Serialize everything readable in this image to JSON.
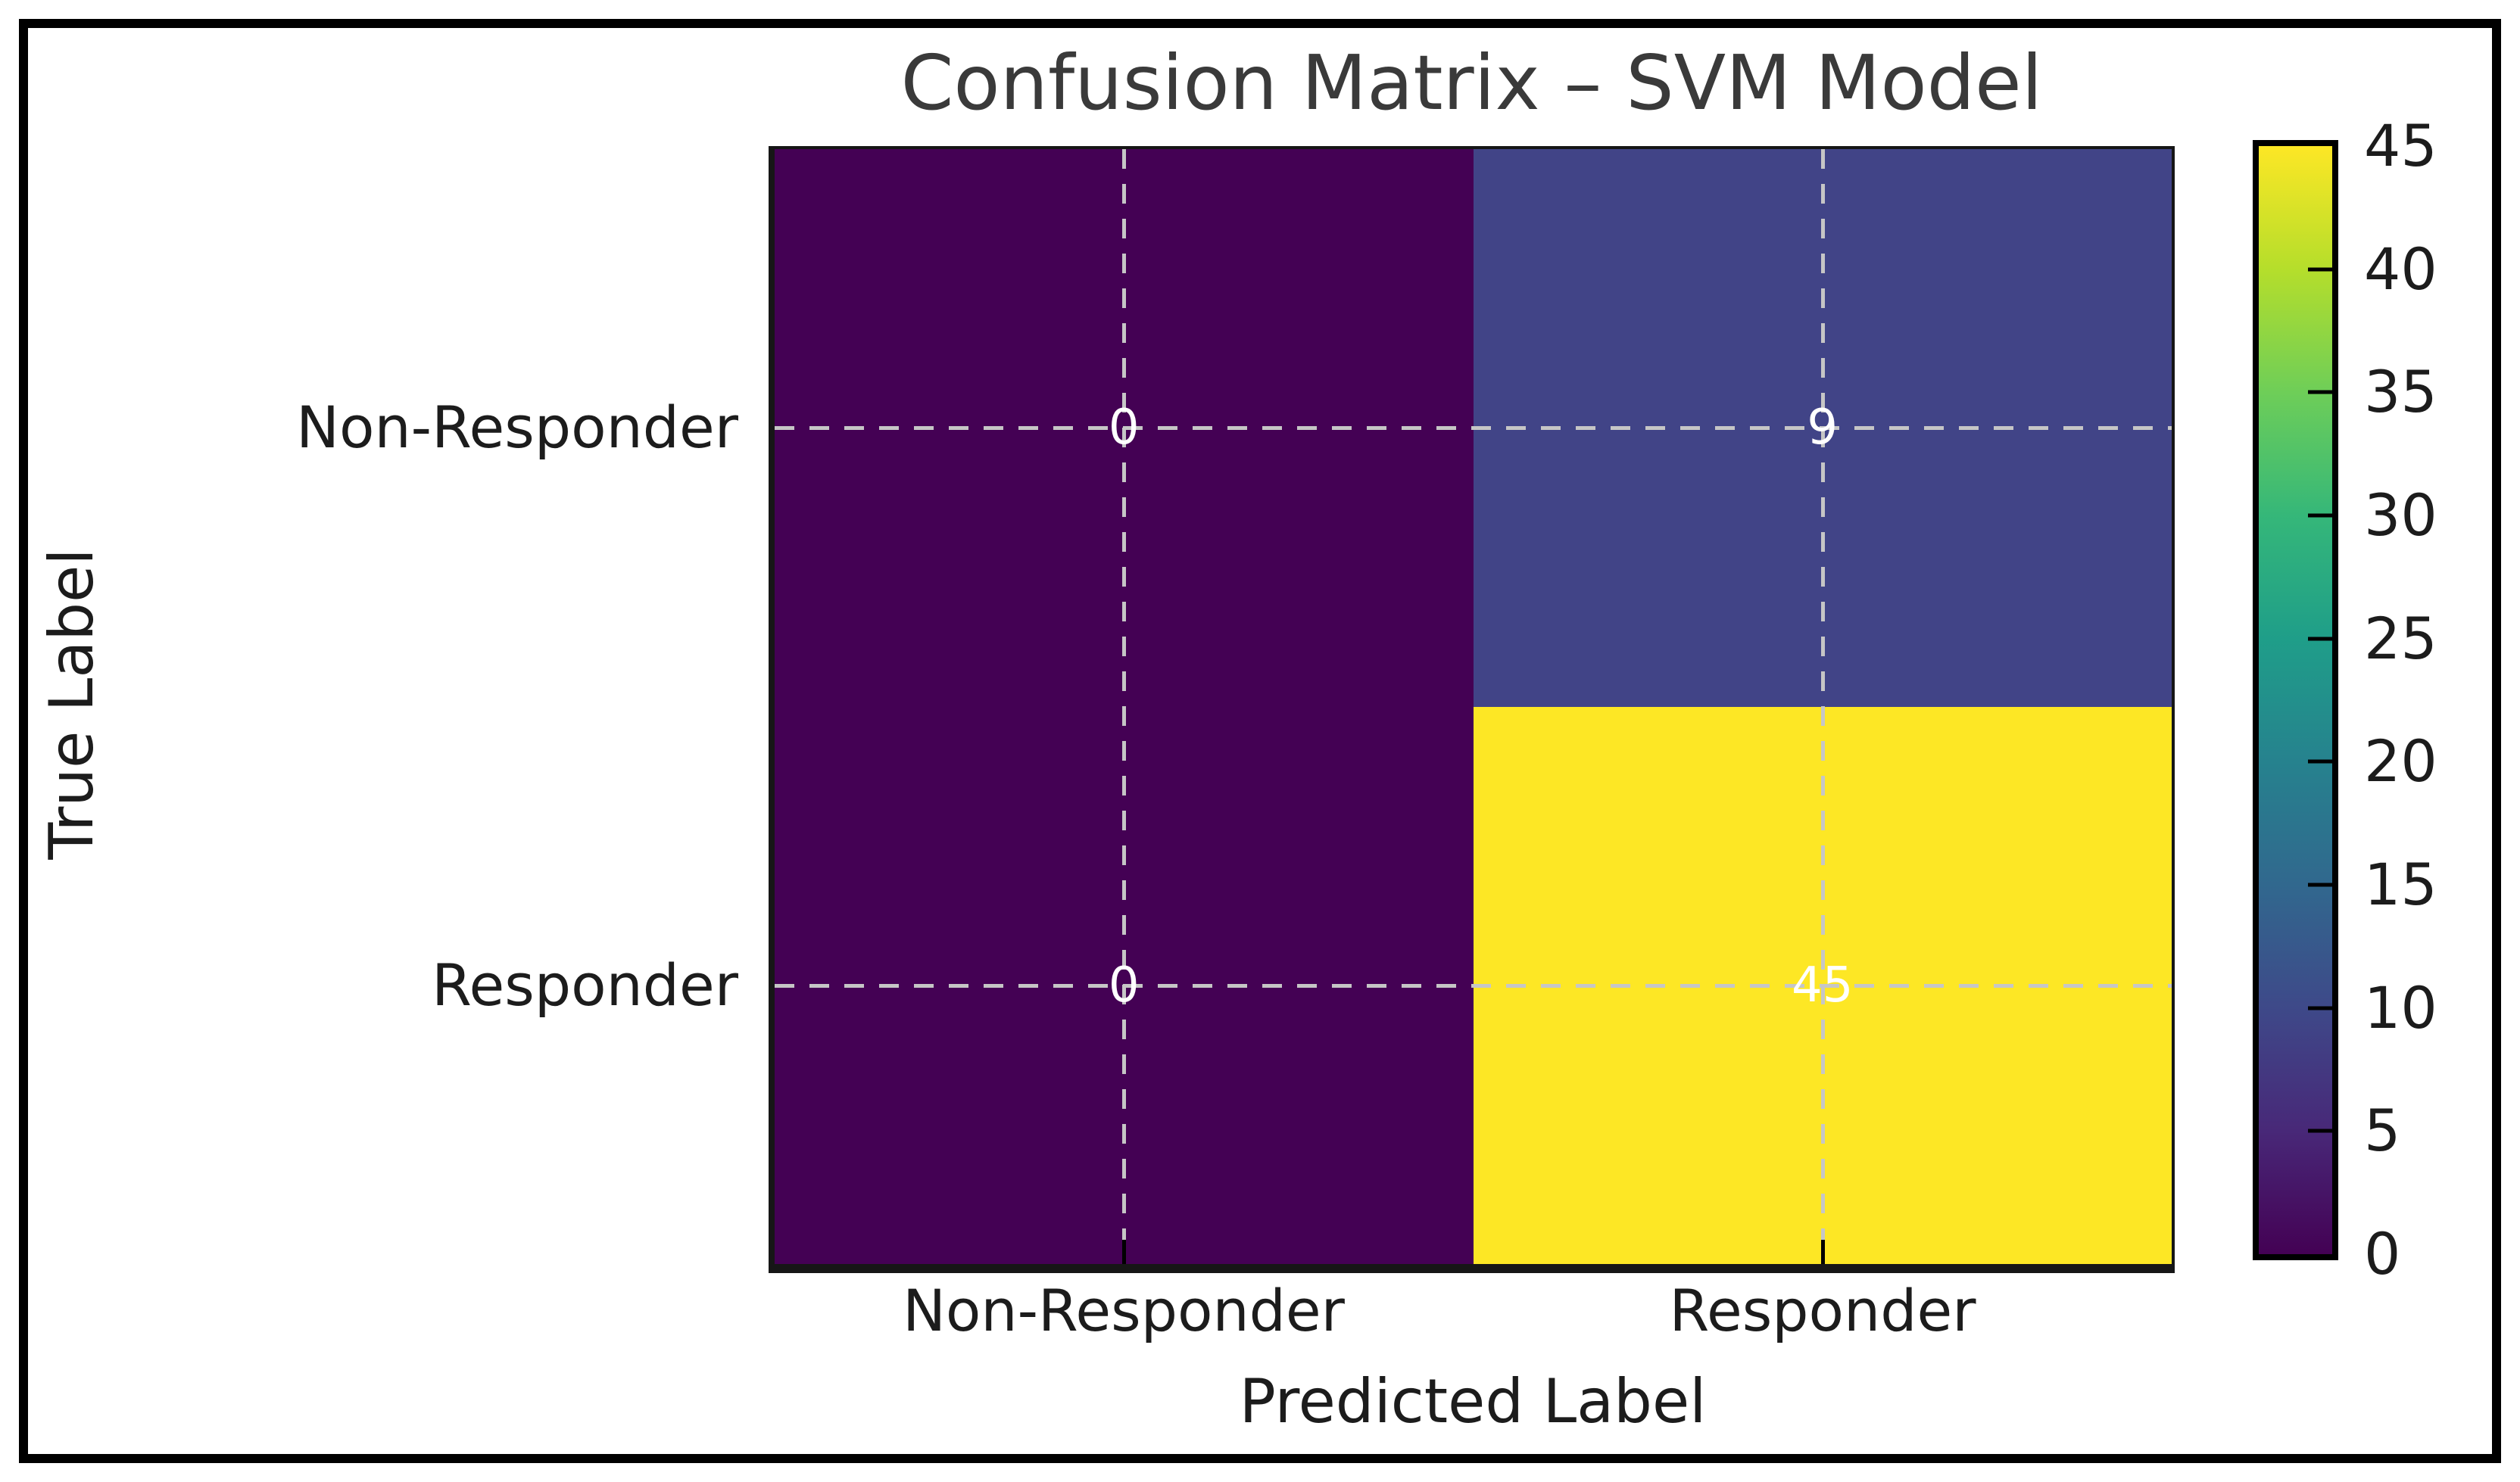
{
  "figure": {
    "title": "Confusion Matrix – SVM Model"
  },
  "chart_data": {
    "type": "heatmap",
    "title": "Confusion Matrix – SVM Model",
    "xlabel": "Predicted Label",
    "ylabel": "True Label",
    "x_categories": [
      "Non-Responder",
      "Responder"
    ],
    "y_categories": [
      "Non-Responder",
      "Responder"
    ],
    "matrix": [
      [
        0,
        9
      ],
      [
        0,
        45
      ]
    ],
    "cell_colors": [
      [
        "#440154",
        "#414487"
      ],
      [
        "#440154",
        "#fde725"
      ]
    ],
    "annotation_color": "#ffffff",
    "grid": {
      "style": "dashed",
      "color": "#c6c6c6"
    },
    "colormap": "viridis",
    "colorbar": {
      "min": 0,
      "max": 45,
      "ticks": [
        0,
        5,
        10,
        15,
        20,
        25,
        30,
        35,
        40,
        45
      ],
      "gradient_stops": [
        "#440154",
        "#482878",
        "#3e4989",
        "#31688e",
        "#26828e",
        "#1f9e89",
        "#35b779",
        "#6ece58",
        "#b5de2b",
        "#fde725"
      ]
    }
  }
}
